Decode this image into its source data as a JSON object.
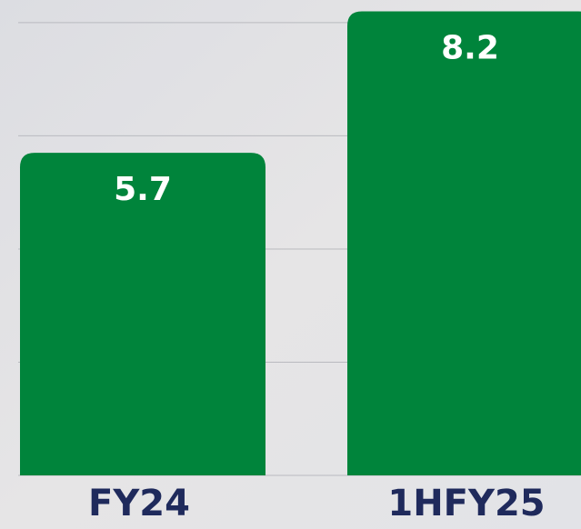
{
  "chart_data": {
    "type": "bar",
    "categories": [
      "FY24",
      "1HFY25"
    ],
    "values": [
      5.7,
      8.2
    ],
    "color": "#00843b",
    "ylim": [
      0,
      8.4
    ],
    "yticks": [
      0,
      2,
      4,
      6,
      8
    ],
    "grid": true
  }
}
